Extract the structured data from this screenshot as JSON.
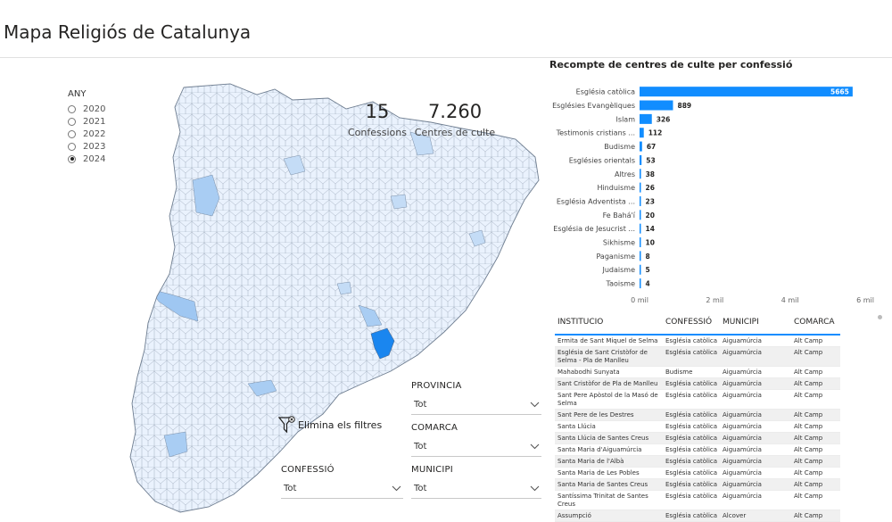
{
  "page": {
    "title": "Mapa Religiós de Catalunya"
  },
  "year_slicer": {
    "header": "ANY",
    "options": [
      "2020",
      "2021",
      "2022",
      "2023",
      "2024"
    ],
    "selected": "2024"
  },
  "kpis": {
    "confessions": {
      "value": "15",
      "label": "Confessions"
    },
    "centres": {
      "value": "7.260",
      "label": "Centres de culte"
    }
  },
  "reset": {
    "label": "Elimina els filtres"
  },
  "slicers": {
    "provincia": {
      "header": "PROVINCIA",
      "value": "Tot"
    },
    "comarca": {
      "header": "COMARCA",
      "value": "Tot"
    },
    "confessio": {
      "header": "CONFESSIÓ",
      "value": "Tot"
    },
    "municipi": {
      "header": "MUNICIPI",
      "value": "Tot"
    }
  },
  "colors": {
    "accent": "#118dff",
    "map_light": "#e8f1fc",
    "map_mid": "#a9cdf3",
    "map_dark": "#1a86ef"
  },
  "chart_data": {
    "type": "bar",
    "orientation": "horizontal",
    "title": "Recompte de centres de culte per confessió",
    "categories": [
      "Església catòlica",
      "Esglésies Evangèliques",
      "Islam",
      "Testimonis cristians ...",
      "Budisme",
      "Esglésies orientals",
      "Altres",
      "Hinduisme",
      "Església Adventista ...",
      "Fe Bahá'í",
      "Església de Jesucrist ...",
      "Sikhisme",
      "Paganisme",
      "Judaisme",
      "Taoisme"
    ],
    "values": [
      5665,
      889,
      326,
      112,
      67,
      53,
      38,
      26,
      23,
      20,
      14,
      10,
      8,
      5,
      4
    ],
    "value_labels": [
      "5665",
      "889",
      "326",
      "112",
      "67",
      "53",
      "38",
      "26",
      "23",
      "20",
      "14",
      "10",
      "8",
      "5",
      "4"
    ],
    "xlim": [
      0,
      6000
    ],
    "xticks": [
      0,
      2000,
      4000,
      6000
    ],
    "xtick_labels": [
      "0 mil",
      "2 mil",
      "4 mil",
      "6 mil"
    ],
    "color": "#118dff"
  },
  "table": {
    "columns": [
      "INSTITUCIO",
      "CONFESSIÓ",
      "MUNICIPI",
      "COMARCA"
    ],
    "rows": [
      [
        "Ermita de Sant Miquel de Selma",
        "Església catòlica",
        "Aiguamúrcia",
        "Alt Camp"
      ],
      [
        "Església de Sant Cristòfor de Selma - Pla de Manlleu",
        "Església catòlica",
        "Aiguamúrcia",
        "Alt Camp"
      ],
      [
        "Mahabodhi Sunyata",
        "Budisme",
        "Aiguamúrcia",
        "Alt Camp"
      ],
      [
        "Sant Cristòfor de Pla de Manlleu",
        "Església catòlica",
        "Aiguamúrcia",
        "Alt Camp"
      ],
      [
        "Sant Pere Apòstol de la Masó de Selma",
        "Església catòlica",
        "Aiguamúrcia",
        "Alt Camp"
      ],
      [
        "Sant Pere de les Destres",
        "Església catòlica",
        "Aiguamúrcia",
        "Alt Camp"
      ],
      [
        "Santa Llúcia",
        "Església catòlica",
        "Aiguamúrcia",
        "Alt Camp"
      ],
      [
        "Santa Llúcia de Santes Creus",
        "Església catòlica",
        "Aiguamúrcia",
        "Alt Camp"
      ],
      [
        "Santa Maria d'Aiguamúrcia",
        "Església catòlica",
        "Aiguamúrcia",
        "Alt Camp"
      ],
      [
        "Santa Maria de l'Albà",
        "Església catòlica",
        "Aiguamúrcia",
        "Alt Camp"
      ],
      [
        "Santa Maria de Les Pobles",
        "Església catòlica",
        "Aiguamúrcia",
        "Alt Camp"
      ],
      [
        "Santa Maria de Santes Creus",
        "Església catòlica",
        "Aiguamúrcia",
        "Alt Camp"
      ],
      [
        "Santíssima Trinitat de Santes Creus",
        "Església catòlica",
        "Aiguamúrcia",
        "Alt Camp"
      ],
      [
        "Assumpció",
        "Església catòlica",
        "Alcover",
        "Alt Camp"
      ]
    ]
  }
}
